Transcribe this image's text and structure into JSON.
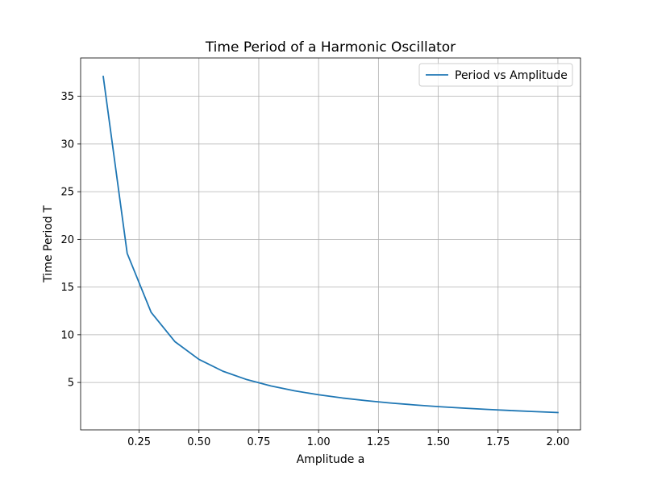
{
  "chart_data": {
    "type": "line",
    "title": "Time Period of a Harmonic Oscillator",
    "xlabel": "Amplitude a",
    "ylabel": "Time Period T",
    "xlim": [
      0.0055,
      2.0945
    ],
    "ylim": [
      0.03,
      39.02
    ],
    "xticks": [
      0.25,
      0.5,
      0.75,
      1.0,
      1.25,
      1.5,
      1.75,
      2.0
    ],
    "xtick_labels": [
      "0.25",
      "0.50",
      "0.75",
      "1.00",
      "1.25",
      "1.50",
      "1.75",
      "2.00"
    ],
    "yticks": [
      5,
      10,
      15,
      20,
      25,
      30,
      35
    ],
    "ytick_labels": [
      "5",
      "10",
      "15",
      "20",
      "25",
      "30",
      "35"
    ],
    "grid": true,
    "legend_position": "upper right",
    "series": [
      {
        "name": "Period vs Amplitude",
        "color": "#1f77b4",
        "x": [
          0.1,
          0.2,
          0.3,
          0.4,
          0.5,
          0.6,
          0.7,
          0.8,
          0.9,
          1.0,
          1.1,
          1.2,
          1.3,
          1.4,
          1.5,
          1.6,
          1.7,
          1.8,
          1.9,
          2.0
        ],
        "y": [
          37.08,
          18.54,
          12.36,
          9.27,
          7.42,
          6.18,
          5.3,
          4.64,
          4.12,
          3.71,
          3.37,
          3.09,
          2.85,
          2.65,
          2.47,
          2.32,
          2.18,
          2.06,
          1.95,
          1.85
        ]
      }
    ]
  }
}
